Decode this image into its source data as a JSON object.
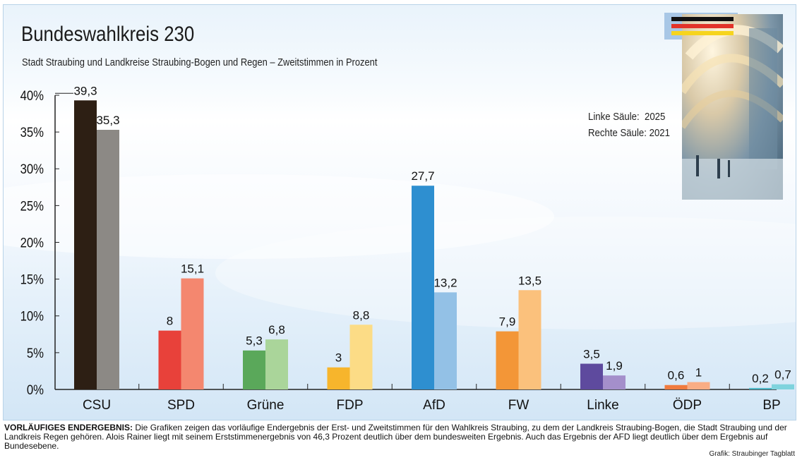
{
  "title": "Bundeswahlkreis 230",
  "subtitle": "Stadt Straubing und Landkreise Straubing-Bogen und Regen – Zweitstimmen in Prozent",
  "legend": {
    "left_label": "Linke Säule:",
    "left_year": "2025",
    "right_label": "Rechte Säule:",
    "right_year": "2021"
  },
  "footnote": {
    "lead": "VORLÄUFIGES ENDERGEBNIS:",
    "text": " Die Grafiken zeigen das vorläufige Endergebnis der Erst- und Zweitstimmen für den Wahlkreis Straubing, zu dem der Landkreis Straubing-Bogen, die Stadt Straubing und der Landkreis Regen gehören. Alois Rainer liegt mit seinem Erststimmenergebnis von 46,3 Prozent deutlich über dem bundesweiten Ergebnis. Auch das Ergebnis der AFD liegt deutlich über dem Ergebnis auf Bundesebene."
  },
  "credit": "Grafik: Straubinger Tagblatt",
  "chart_data": {
    "type": "bar",
    "title": "Bundeswahlkreis 230",
    "subtitle": "Stadt Straubing und Landkreise Straubing-Bogen und Regen – Zweitstimmen in Prozent",
    "categories": [
      "CSU",
      "SPD",
      "Grüne",
      "FDP",
      "AfD",
      "FW",
      "Linke",
      "ÖDP",
      "BP"
    ],
    "series": [
      {
        "name": "2025",
        "values": [
          39.3,
          8,
          5.3,
          3,
          27.7,
          7.9,
          3.5,
          0.6,
          0.2
        ],
        "labels": [
          "39,3",
          "8",
          "5,3",
          "3",
          "27,7",
          "7,9",
          "3,5",
          "0,6",
          "0,2"
        ],
        "colors": [
          "#2d1f14",
          "#e8413a",
          "#5aa85a",
          "#f7b52c",
          "#2e8fd0",
          "#f39637",
          "#5e4a9e",
          "#f07b3e",
          "#4db8c8"
        ]
      },
      {
        "name": "2021",
        "values": [
          35.3,
          15.1,
          6.8,
          8.8,
          13.2,
          13.5,
          1.9,
          1,
          0.7
        ],
        "labels": [
          "35,3",
          "15,1",
          "6,8",
          "8,8",
          "13,2",
          "13,5",
          "1,9",
          "1",
          "0,7"
        ],
        "colors": [
          "#8c8985",
          "#f4876f",
          "#aad59a",
          "#fcdc86",
          "#93c1e6",
          "#fbc17c",
          "#a48fcb",
          "#f9ad84",
          "#7fd3dd"
        ]
      }
    ],
    "yticks": [
      "0%",
      "5%",
      "10%",
      "15%",
      "20%",
      "25%",
      "30%",
      "35%",
      "40%"
    ],
    "ylim": [
      0,
      40
    ],
    "grid": false
  }
}
